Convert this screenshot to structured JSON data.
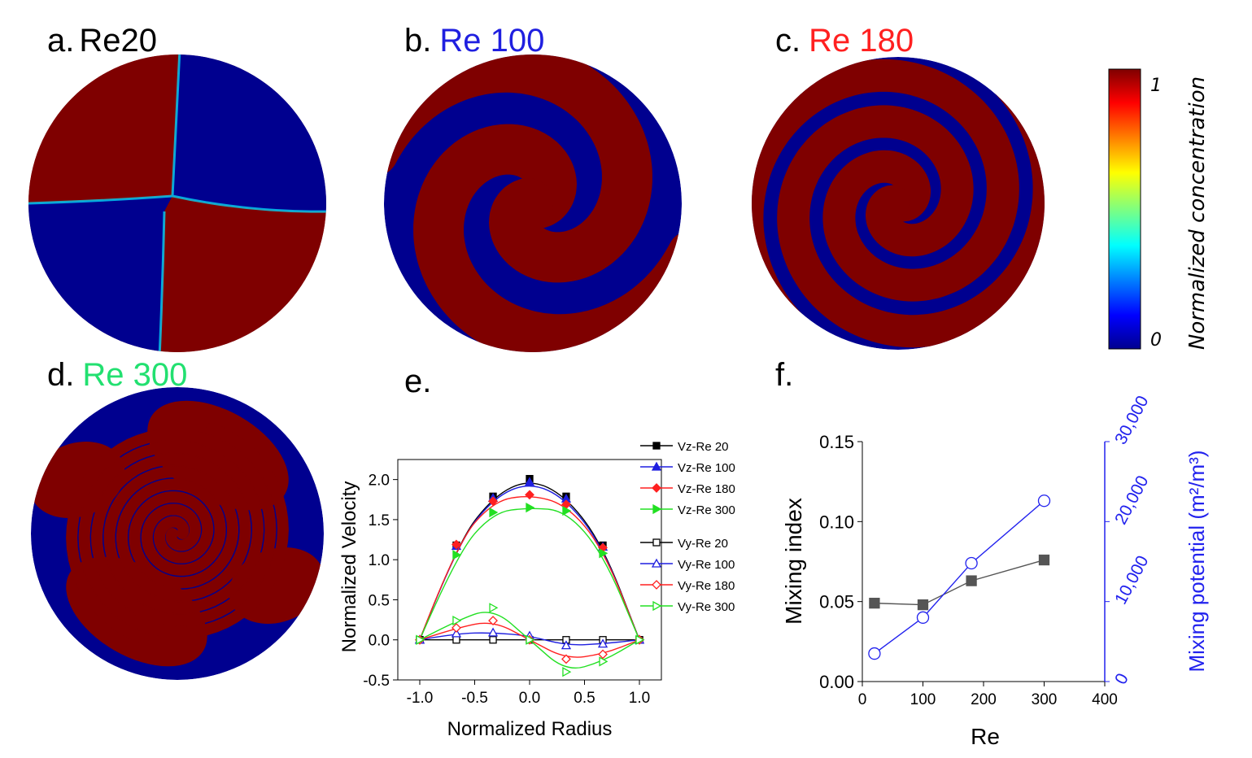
{
  "panels": {
    "a": {
      "letter": "a.",
      "label": "Re20",
      "color": "#111111"
    },
    "b": {
      "letter": "b.",
      "label": "Re 100",
      "color": "#1f1fe0"
    },
    "c": {
      "letter": "c.",
      "label": "Re 180",
      "color": "#ff2020"
    },
    "d": {
      "letter": "d.",
      "label": "Re 300",
      "color": "#22e070"
    },
    "e": {
      "letter": "e."
    },
    "f": {
      "letter": "f."
    }
  },
  "colorbar": {
    "title": "Normalized concentration",
    "max_label": "1",
    "min_label": "0",
    "colors": {
      "high": "#7f0000",
      "low": "#00008f"
    }
  },
  "chart_data": [
    {
      "type": "line",
      "panel": "e",
      "xlabel": "Normalized Radius",
      "ylabel": "Normalized Velocity",
      "xlim": [
        -1.2,
        1.2
      ],
      "ylim": [
        -0.5,
        2.25
      ],
      "xticks": [
        "-1.0",
        "-0.5",
        "0.0",
        "0.5",
        "1.0"
      ],
      "yticks": [
        "-0.5",
        "0.0",
        "0.5",
        "1.0",
        "1.5",
        "2.0"
      ],
      "legend": "right",
      "series": [
        {
          "name": "Vz-Re 20",
          "color": "#000000",
          "marker": "square",
          "filled": true,
          "x": [
            -1.0,
            -0.667,
            -0.333,
            0.0,
            0.333,
            0.667,
            1.0
          ],
          "y": [
            0.0,
            1.18,
            1.79,
            2.01,
            1.79,
            1.18,
            0.0
          ]
        },
        {
          "name": "Vz-Re 100",
          "color": "#1f1fe0",
          "marker": "triangle",
          "filled": true,
          "x": [
            -1.0,
            -0.667,
            -0.333,
            0.0,
            0.333,
            0.667,
            1.0
          ],
          "y": [
            0.0,
            1.17,
            1.77,
            1.97,
            1.76,
            1.16,
            0.0
          ]
        },
        {
          "name": "Vz-Re 180",
          "color": "#ff2020",
          "marker": "diamond",
          "filled": true,
          "x": [
            -1.0,
            -0.667,
            -0.333,
            0.0,
            0.333,
            0.667,
            1.0
          ],
          "y": [
            0.0,
            1.19,
            1.73,
            1.81,
            1.69,
            1.15,
            0.0
          ]
        },
        {
          "name": "Vz-Re 300",
          "color": "#22e022",
          "marker": "tri-right",
          "filled": true,
          "x": [
            -1.0,
            -0.667,
            -0.333,
            0.0,
            0.333,
            0.667,
            1.0
          ],
          "y": [
            0.0,
            1.06,
            1.59,
            1.65,
            1.61,
            1.08,
            0.0
          ]
        },
        {
          "name": "Vy-Re 20",
          "color": "#000000",
          "marker": "square",
          "filled": false,
          "x": [
            -1.0,
            -0.667,
            -0.333,
            0.0,
            0.333,
            0.667,
            1.0
          ],
          "y": [
            0.0,
            0.0,
            0.0,
            0.0,
            0.0,
            0.0,
            0.0
          ]
        },
        {
          "name": "Vy-Re 100",
          "color": "#1f1fe0",
          "marker": "triangle",
          "filled": false,
          "x": [
            -1.0,
            -0.667,
            -0.333,
            0.0,
            0.333,
            0.667,
            1.0
          ],
          "y": [
            0.0,
            0.08,
            0.09,
            0.05,
            -0.07,
            -0.05,
            0.0
          ]
        },
        {
          "name": "Vy-Re 180",
          "color": "#ff2020",
          "marker": "diamond",
          "filled": false,
          "x": [
            -1.0,
            -0.667,
            -0.333,
            0.0,
            0.333,
            0.667,
            1.0
          ],
          "y": [
            0.0,
            0.15,
            0.24,
            0.0,
            -0.24,
            -0.18,
            0.0
          ]
        },
        {
          "name": "Vy-Re 300",
          "color": "#22e022",
          "marker": "tri-right",
          "filled": false,
          "x": [
            -1.0,
            -0.667,
            -0.333,
            0.0,
            0.333,
            0.667,
            1.0
          ],
          "y": [
            0.0,
            0.24,
            0.4,
            0.0,
            -0.4,
            -0.27,
            0.0
          ]
        }
      ]
    },
    {
      "type": "line",
      "panel": "f",
      "xlabel": "Re",
      "ylabel": "Mixing index",
      "y2label": "Mixing potential (m²/m³)",
      "xlim": [
        0,
        400
      ],
      "ylim": [
        0,
        0.15
      ],
      "y2lim": [
        0,
        30000
      ],
      "xticks": [
        "0",
        "100",
        "200",
        "300",
        "400"
      ],
      "yticks": [
        "0.00",
        "0.05",
        "0.10",
        "0.15"
      ],
      "y2ticks": [
        "0",
        "10,000",
        "20,000",
        "30,000"
      ],
      "series": [
        {
          "name": "Mixing index",
          "axis": "left",
          "color": "#555555",
          "marker": "square",
          "filled": true,
          "x": [
            20,
            100,
            180,
            300
          ],
          "y": [
            0.049,
            0.048,
            0.063,
            0.076
          ]
        },
        {
          "name": "Mixing potential",
          "axis": "right",
          "color": "#2222ee",
          "marker": "circle",
          "filled": false,
          "x": [
            20,
            100,
            180,
            300
          ],
          "y": [
            3500,
            8000,
            14800,
            22600
          ]
        }
      ]
    }
  ]
}
